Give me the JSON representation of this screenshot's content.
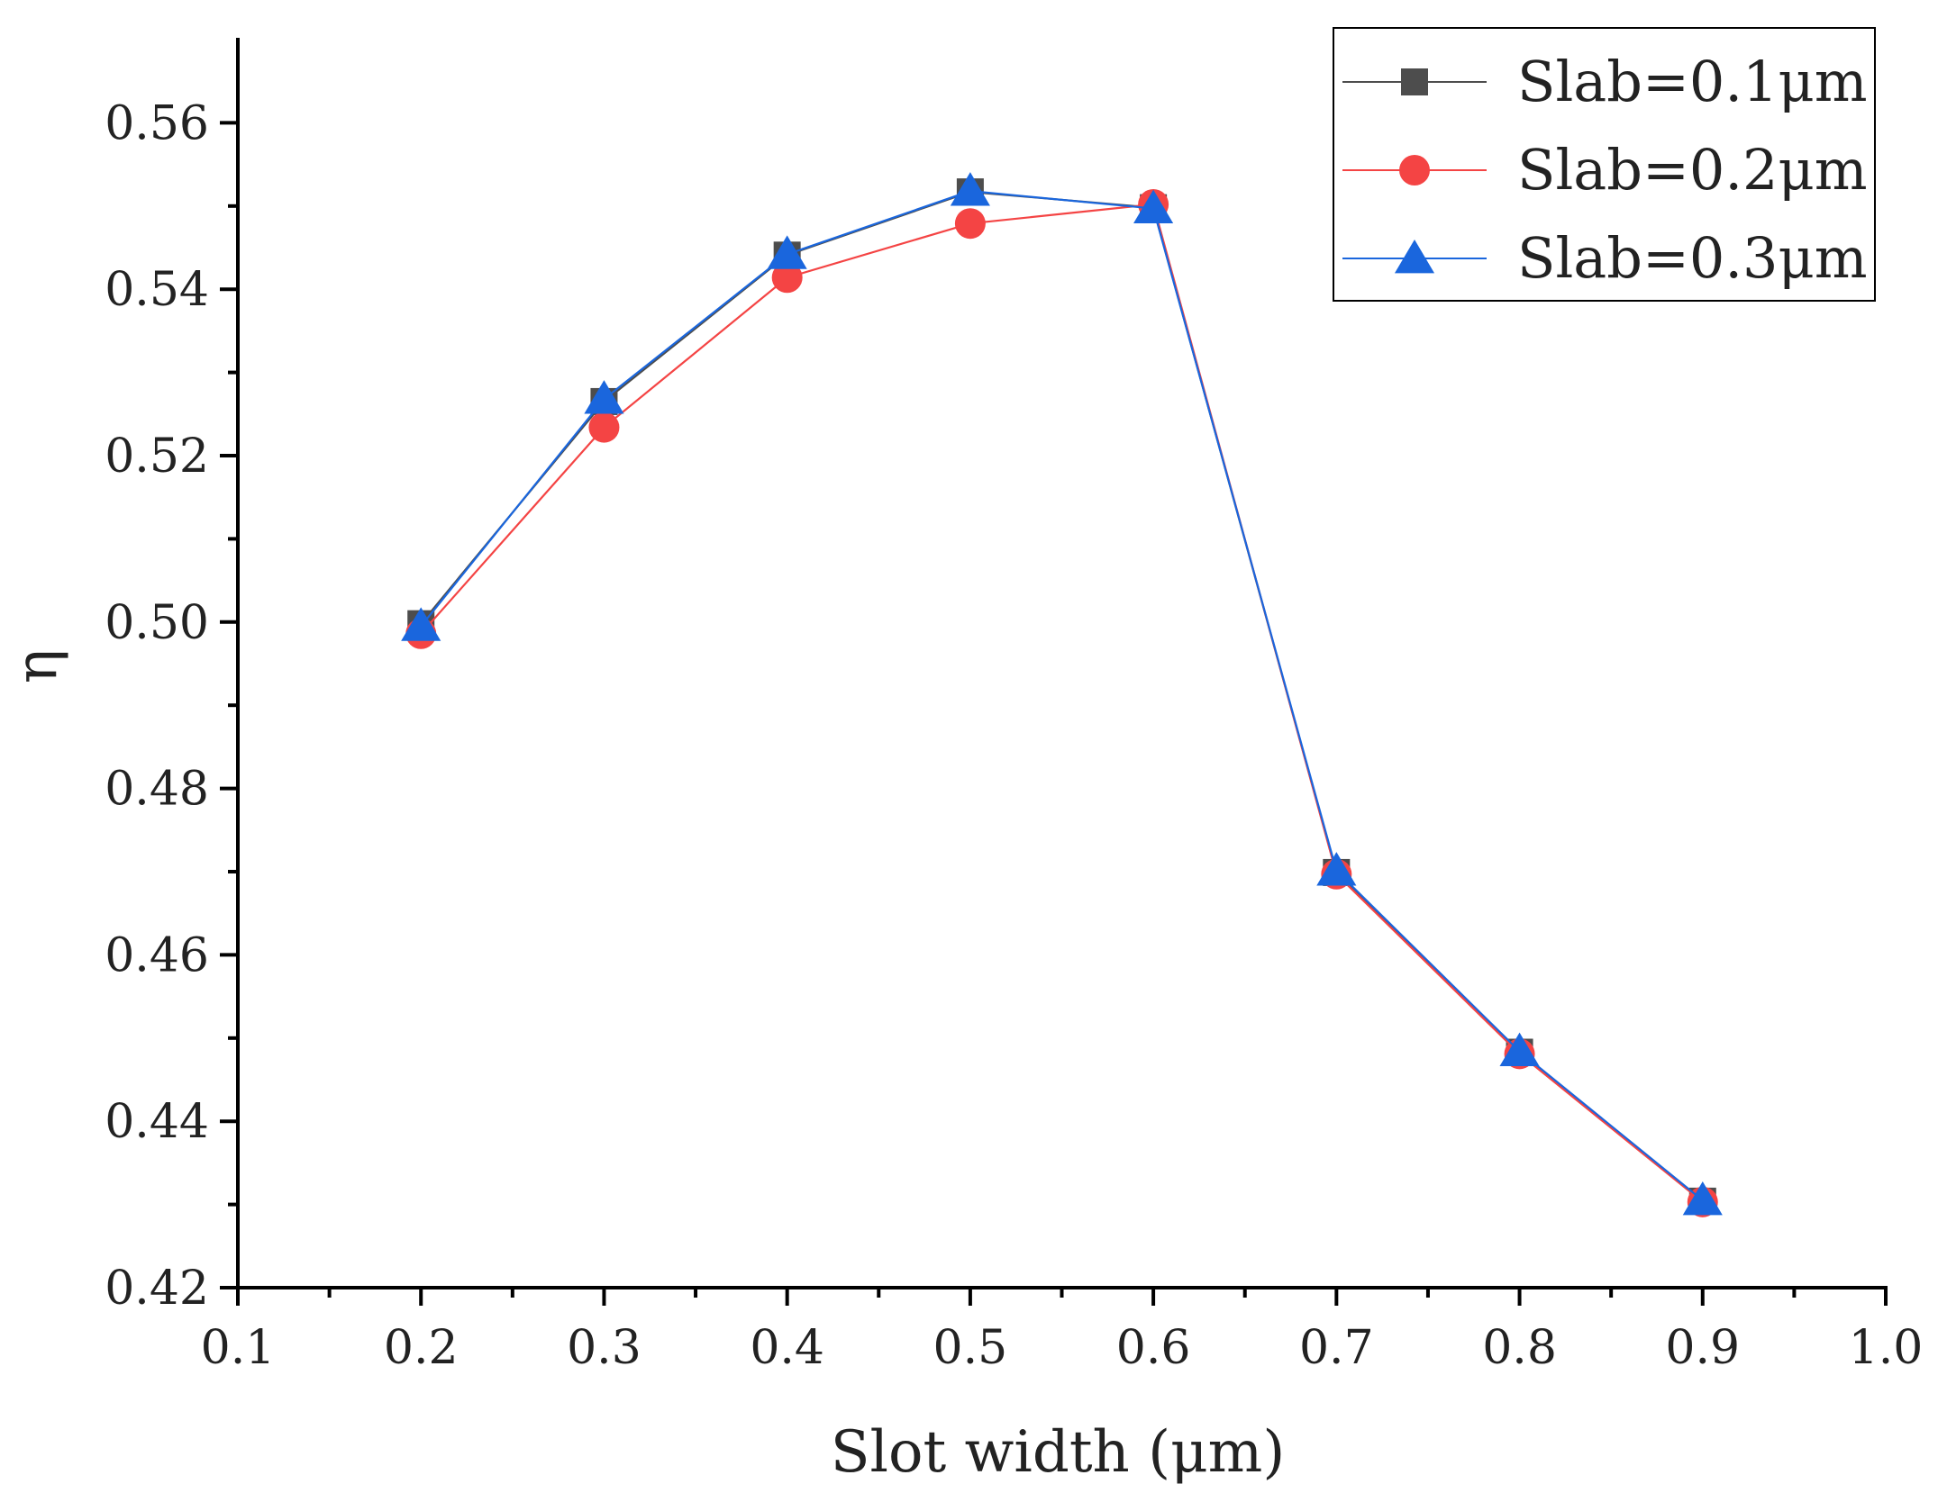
{
  "chart_data": {
    "type": "line",
    "title": "",
    "xlabel": "Slot width (μm)",
    "ylabel": "η",
    "xlim": [
      0.1,
      1.0
    ],
    "ylim": [
      0.42,
      0.57
    ],
    "x_ticks": [
      0.1,
      0.2,
      0.3,
      0.4,
      0.5,
      0.6,
      0.7,
      0.8,
      0.9,
      1.0
    ],
    "x_tick_labels": [
      "0.1",
      "0.2",
      "0.3",
      "0.4",
      "0.5",
      "0.6",
      "0.7",
      "0.8",
      "0.9",
      "1.0"
    ],
    "y_ticks": [
      0.42,
      0.44,
      0.46,
      0.48,
      0.5,
      0.52,
      0.54,
      0.56
    ],
    "y_tick_labels": [
      "0.42",
      "0.44",
      "0.46",
      "0.48",
      "0.50",
      "0.52",
      "0.54",
      "0.56"
    ],
    "x": [
      0.2,
      0.3,
      0.4,
      0.5,
      0.6,
      0.7,
      0.8,
      0.9
    ],
    "grid": false,
    "legend_position": "top-right",
    "series": [
      {
        "name": "Slab=0.1μm",
        "marker": "square",
        "color": "#4d4d4d",
        "values": [
          0.4998,
          0.5265,
          0.5441,
          0.5517,
          0.5498,
          0.4699,
          0.4483,
          0.4304
        ]
      },
      {
        "name": "Slab=0.2μm",
        "marker": "circle",
        "color": "#f44444",
        "values": [
          0.4986,
          0.5234,
          0.5414,
          0.5479,
          0.5502,
          0.4697,
          0.4481,
          0.4303
        ]
      },
      {
        "name": "Slab=0.3μm",
        "marker": "triangle",
        "color": "#1a66dd",
        "values": [
          0.4995,
          0.5268,
          0.5442,
          0.5518,
          0.5497,
          0.4701,
          0.4484,
          0.4305
        ]
      }
    ]
  }
}
